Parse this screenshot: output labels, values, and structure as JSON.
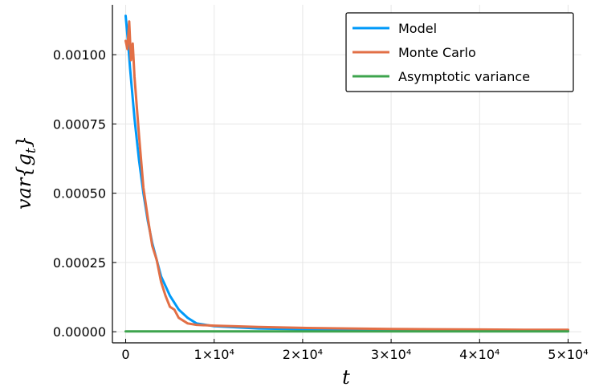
{
  "chart_data": {
    "type": "line",
    "title": "",
    "xlabel": "t",
    "ylabel": "var{g_t}",
    "xlim": [
      -1500,
      51500
    ],
    "ylim": [
      -4e-05,
      0.00118
    ],
    "x_ticks": [
      0,
      10000,
      20000,
      30000,
      40000,
      50000
    ],
    "x_tick_labels": [
      "0",
      "1×10⁴",
      "2×10⁴",
      "3×10⁴",
      "4×10⁴",
      "5×10⁴"
    ],
    "y_ticks": [
      0,
      0.00025,
      0.0005,
      0.00075,
      0.001
    ],
    "y_tick_labels": [
      "0.00000",
      "0.00025",
      "0.00050",
      "0.00075",
      "0.00100"
    ],
    "grid": true,
    "legend_position": "top-right",
    "series": [
      {
        "name": "Model",
        "color": "#009af9",
        "x": [
          0,
          250,
          500,
          1000,
          1500,
          2000,
          2500,
          3000,
          3500,
          4000,
          5000,
          6000,
          7000,
          8000,
          10000,
          15000,
          20000,
          30000,
          40000,
          50000
        ],
        "y": [
          0.00114,
          0.00105,
          0.00095,
          0.00077,
          0.00062,
          0.0005,
          0.0004,
          0.00032,
          0.00026,
          0.0002,
          0.00013,
          8e-05,
          5e-05,
          3e-05,
          2e-05,
          1.2e-05,
          9e-06,
          6e-06,
          5e-06,
          4e-06
        ]
      },
      {
        "name": "Monte Carlo",
        "color": "#e26f46",
        "x": [
          0,
          200,
          400,
          600,
          800,
          1000,
          1500,
          2000,
          2500,
          3000,
          3500,
          4000,
          4500,
          5000,
          5500,
          6000,
          7000,
          8000,
          10000,
          12000,
          15000,
          20000,
          25000,
          30000,
          35000,
          40000,
          45000,
          50000
        ],
        "y": [
          0.00105,
          0.00102,
          0.00112,
          0.00098,
          0.00104,
          0.00092,
          0.00071,
          0.00052,
          0.00041,
          0.00031,
          0.00026,
          0.00018,
          0.00013,
          9e-05,
          8e-05,
          5e-05,
          3e-05,
          2.5e-05,
          2.2e-05,
          2e-05,
          1.7e-05,
          1.4e-05,
          1.2e-05,
          1e-05,
          9e-06,
          8e-06,
          7e-06,
          7e-06
        ]
      },
      {
        "name": "Asymptotic variance",
        "color": "#3da44d",
        "x": [
          0,
          50000
        ],
        "y": [
          1.5e-06,
          1.5e-06
        ]
      }
    ]
  }
}
